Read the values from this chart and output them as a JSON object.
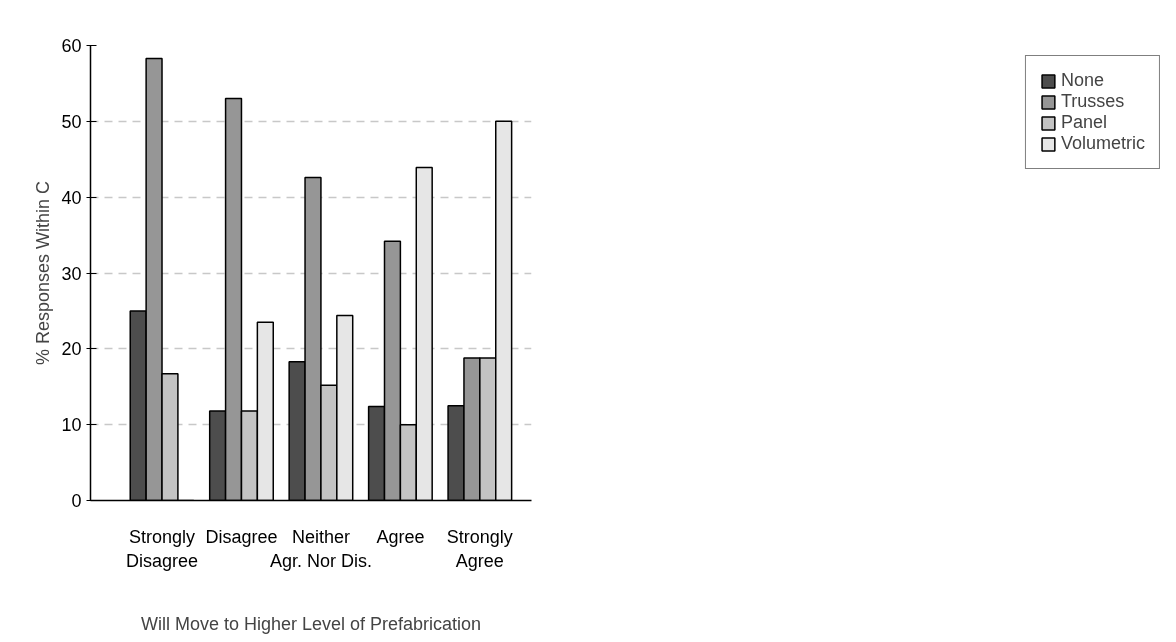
{
  "chart_data": {
    "type": "bar",
    "xlabel": "Will Move to Higher Level of Prefabrication",
    "ylabel": "% Responses Within C",
    "categories": [
      "Strongly\nDisagree",
      "Disagree",
      "Neither\nAgr. Nor Dis.",
      "Agree",
      "Strongly\nAgree"
    ],
    "series": [
      {
        "name": "None",
        "color": "#4d4d4d",
        "values": [
          25,
          11.8,
          18.3,
          12.4,
          12.5
        ]
      },
      {
        "name": "Trusses",
        "color": "#969696",
        "values": [
          58.3,
          53,
          42.6,
          34.2,
          18.8
        ]
      },
      {
        "name": "Panel",
        "color": "#c3c3c3",
        "values": [
          16.7,
          11.8,
          15.2,
          10,
          18.8
        ]
      },
      {
        "name": "Volumetric",
        "color": "#e6e6e6",
        "values": [
          0,
          23.5,
          24.4,
          43.9,
          50
        ]
      }
    ],
    "ylim": [
      0,
      60
    ],
    "yticks": [
      0,
      10,
      20,
      30,
      40,
      50,
      60
    ],
    "grid": "y",
    "legend": "right"
  }
}
